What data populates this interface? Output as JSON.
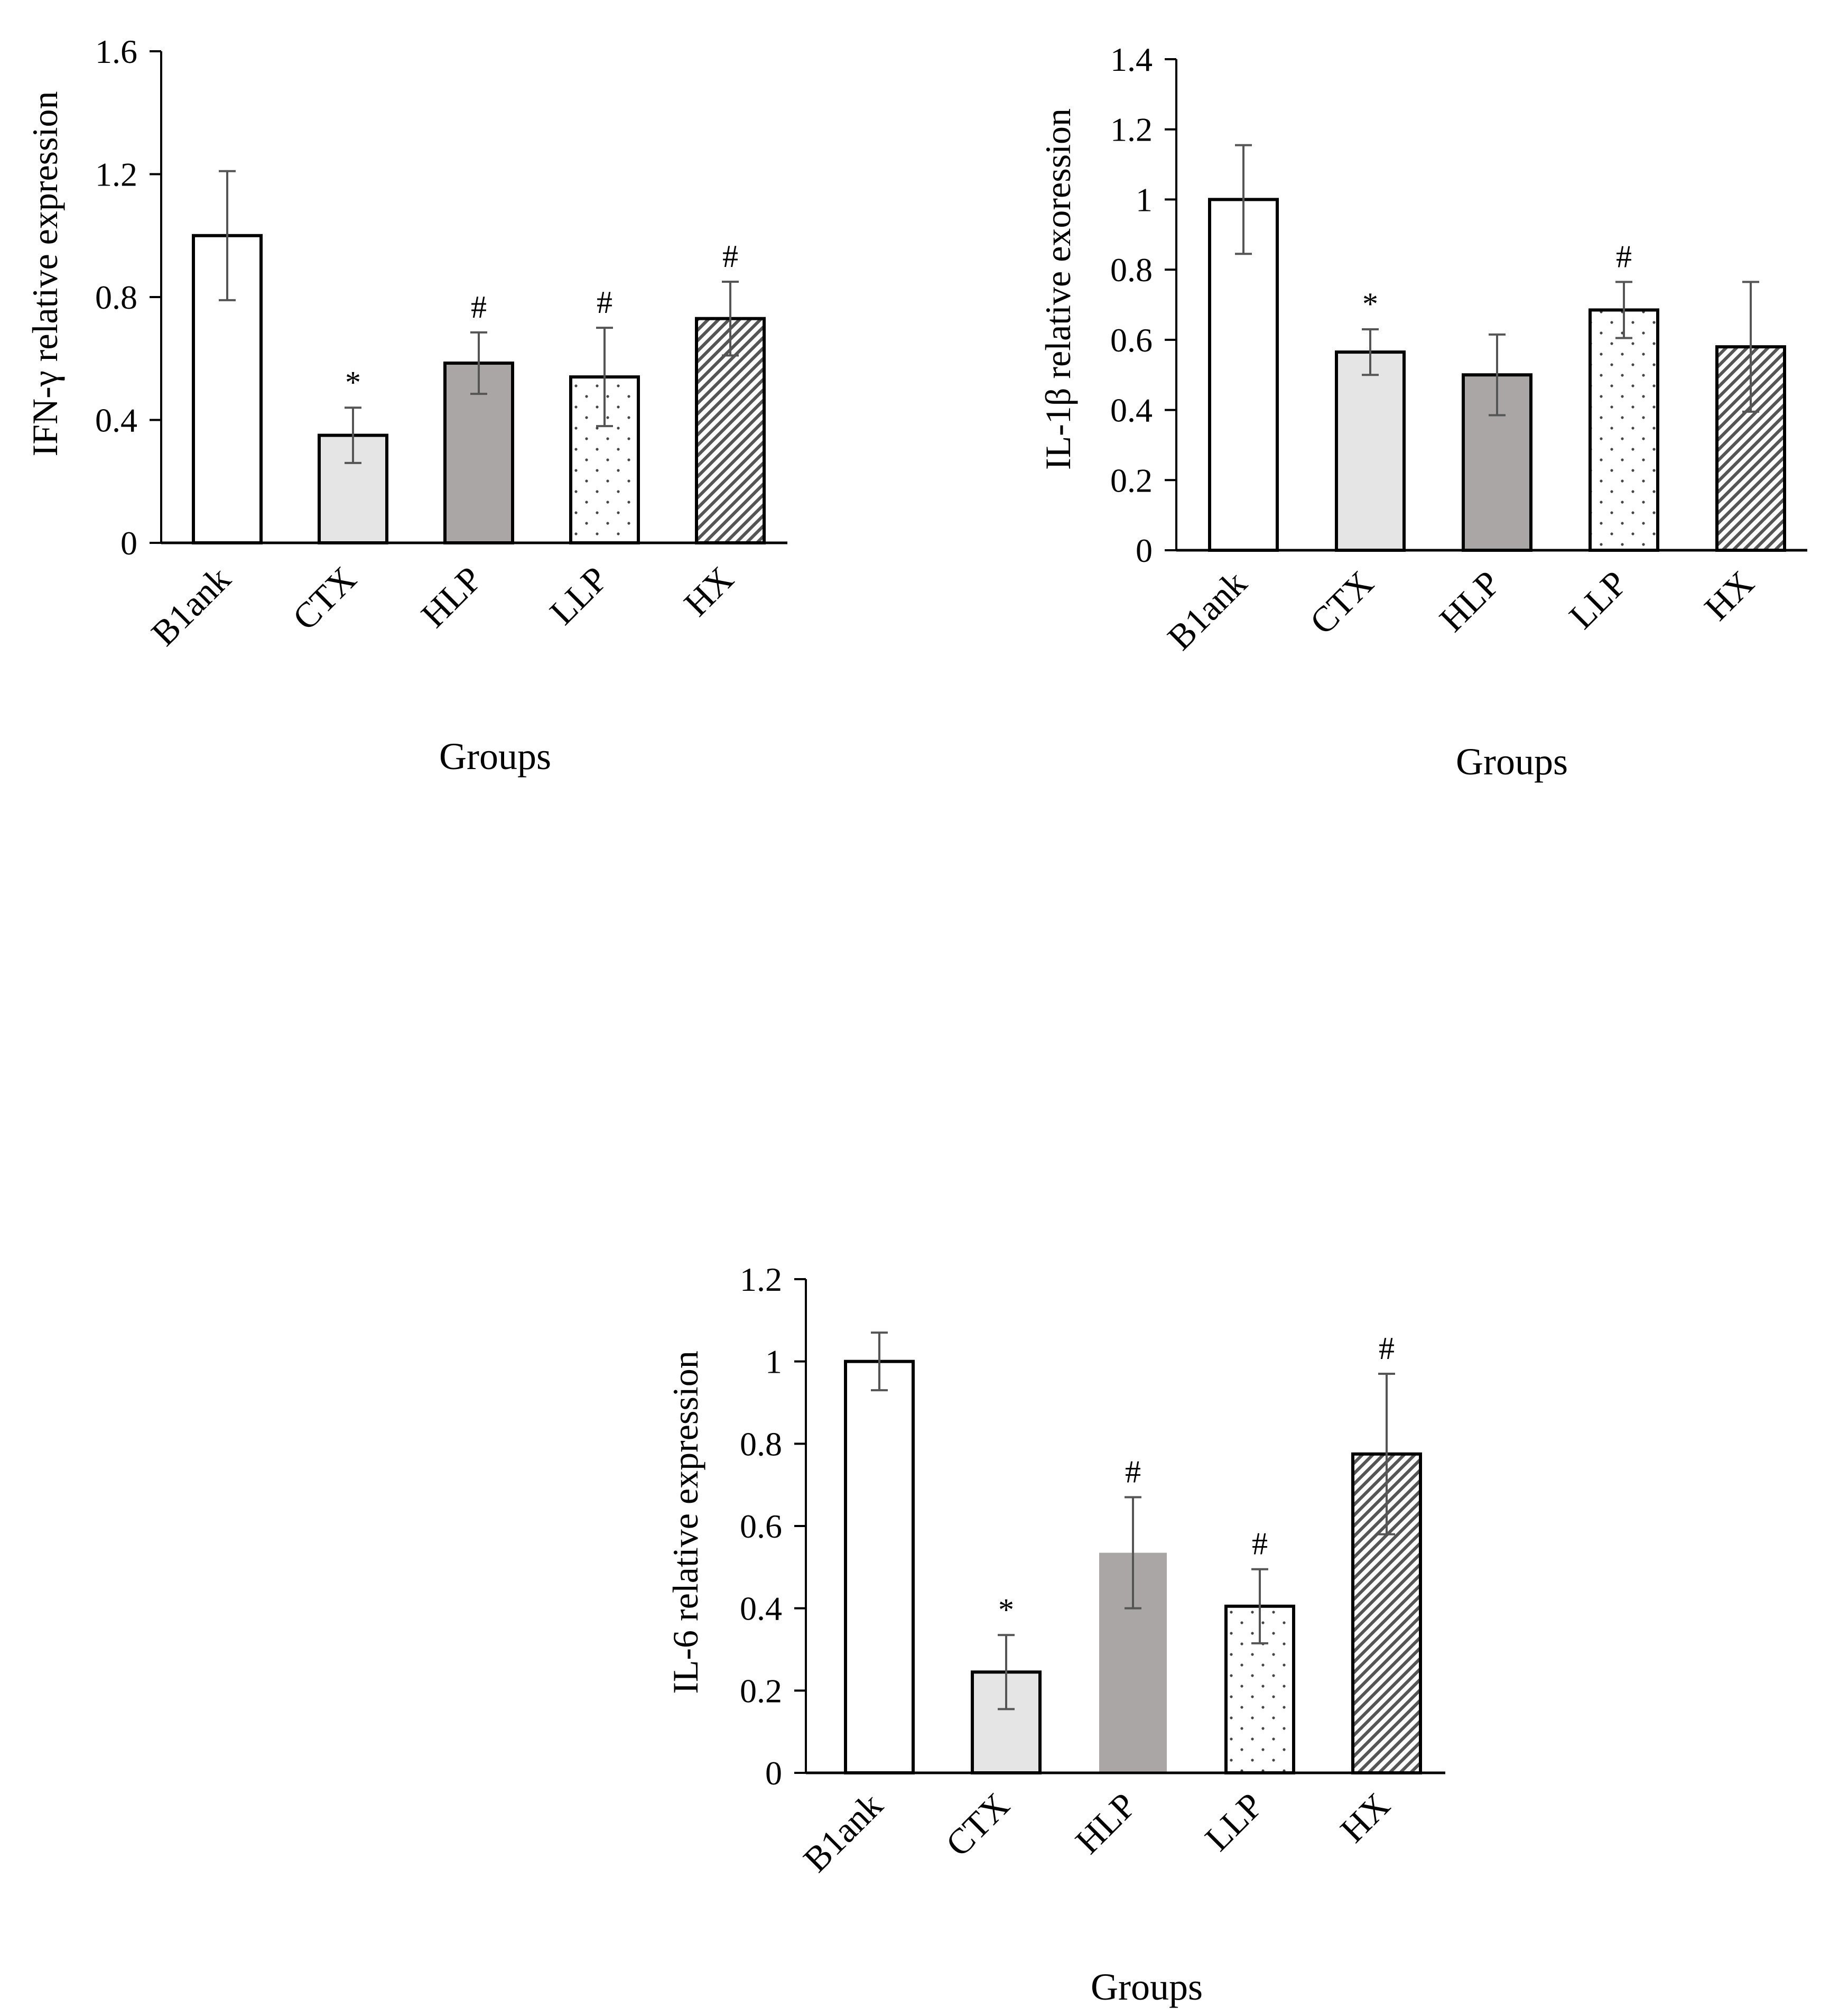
{
  "chart_data": [
    {
      "type": "bar",
      "title": "",
      "xlabel": "Groups",
      "ylabel": "IFN-γ relative expression",
      "ylim": [
        0,
        1.6
      ],
      "yticks": [
        "0",
        "0.4",
        "0.8",
        "1.2",
        "1.6"
      ],
      "categories": [
        "B1ank",
        "CTX",
        "HLP",
        "LLP",
        "HX"
      ],
      "values": [
        1.0,
        0.35,
        0.585,
        0.54,
        0.73
      ],
      "errors": [
        0.21,
        0.09,
        0.1,
        0.16,
        0.12
      ],
      "annotations": [
        "",
        "*",
        "#",
        "#",
        "#"
      ],
      "grid": false
    },
    {
      "type": "bar",
      "title": "",
      "xlabel": "Groups",
      "ylabel": "IL-1β relative exoression",
      "ylim": [
        0,
        1.4
      ],
      "yticks": [
        "0",
        "0.2",
        "0.4",
        "0.6",
        "0.8",
        "1",
        "1.2",
        "1.4"
      ],
      "categories": [
        "B1ank",
        "CTX",
        "HLP",
        "LLP",
        "HX"
      ],
      "values": [
        1.0,
        0.565,
        0.5,
        0.685,
        0.58
      ],
      "errors": [
        0.155,
        0.065,
        0.115,
        0.08,
        0.185
      ],
      "annotations": [
        "",
        "*",
        "",
        "#",
        ""
      ],
      "grid": false
    },
    {
      "type": "bar",
      "title": "",
      "xlabel": "Groups",
      "ylabel": "IL-6 relative expression",
      "ylim": [
        0,
        1.2
      ],
      "yticks": [
        "0",
        "0.2",
        "0.4",
        "0.6",
        "0.8",
        "1",
        "1.2"
      ],
      "categories": [
        "B1ank",
        "CTX",
        "HLP",
        "LLP",
        "HX"
      ],
      "values": [
        1.0,
        0.245,
        0.535,
        0.405,
        0.775
      ],
      "errors": [
        0.07,
        0.09,
        0.135,
        0.09,
        0.195
      ],
      "annotations": [
        "",
        "*",
        "#",
        "#",
        "#"
      ],
      "grid": false
    }
  ]
}
